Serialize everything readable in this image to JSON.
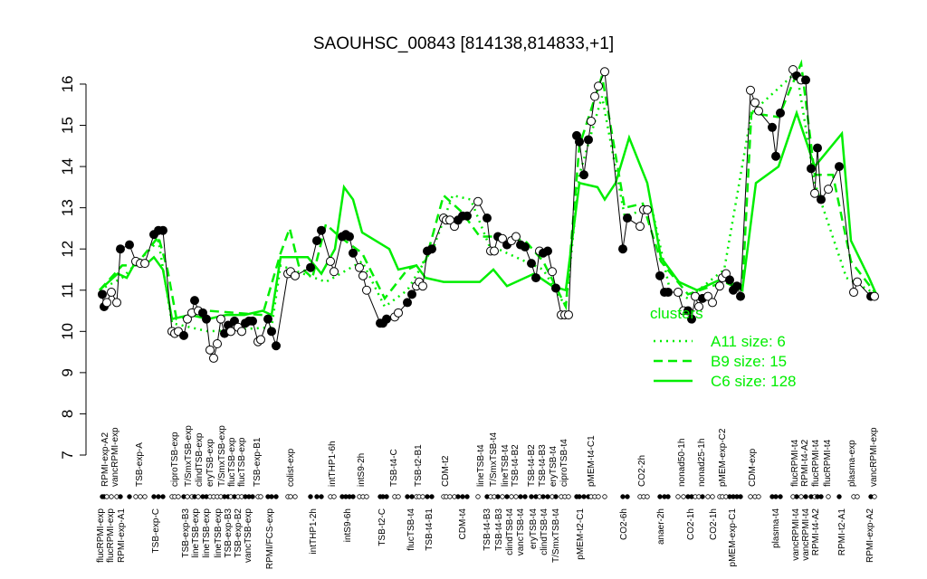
{
  "chart_data": {
    "type": "line",
    "title": "SAOUHSC_00843 [814138,814833,+1]",
    "ylim": [
      7,
      16.5
    ],
    "yticks": [
      7,
      8,
      9,
      10,
      11,
      12,
      13,
      14,
      15,
      16
    ],
    "grid": false,
    "legend_position": "right",
    "legend_title": "clusters",
    "colors": {
      "series": "#00ee00",
      "points": "#000000"
    },
    "points": [
      [
        1.6,
        10.9,
        1
      ],
      [
        2,
        10.6,
        1
      ],
      [
        2.6,
        10.7,
        0
      ],
      [
        3.6,
        10.95,
        0
      ],
      [
        4.8,
        10.7,
        0
      ],
      [
        5.6,
        12.0,
        1
      ],
      [
        7.6,
        12.1,
        1
      ],
      [
        9,
        11.7,
        0
      ],
      [
        10,
        11.65,
        0
      ],
      [
        11,
        11.65,
        0
      ],
      [
        13,
        12.35,
        1
      ],
      [
        14,
        12.45,
        1
      ],
      [
        15,
        12.45,
        1
      ],
      [
        17,
        10.0,
        0
      ],
      [
        17.6,
        9.95,
        0
      ],
      [
        18.4,
        10.0,
        0
      ],
      [
        19.6,
        9.9,
        1
      ],
      [
        20.4,
        10.3,
        0
      ],
      [
        21.4,
        10.45,
        0
      ],
      [
        22,
        10.75,
        1
      ],
      [
        22.8,
        10.5,
        0
      ],
      [
        23.8,
        10.45,
        1
      ],
      [
        24.6,
        10.3,
        1
      ],
      [
        25.4,
        9.55,
        0
      ],
      [
        26.2,
        9.35,
        0
      ],
      [
        27,
        9.7,
        0
      ],
      [
        27.8,
        10.3,
        0
      ],
      [
        28.6,
        9.95,
        1
      ],
      [
        29.4,
        10.15,
        1
      ],
      [
        30,
        10.0,
        0
      ],
      [
        30.8,
        10.25,
        1
      ],
      [
        31.6,
        10.1,
        0
      ],
      [
        32.4,
        10.0,
        0
      ],
      [
        33.2,
        10.2,
        1
      ],
      [
        34,
        10.25,
        1
      ],
      [
        34.8,
        10.25,
        1
      ],
      [
        36,
        9.75,
        0
      ],
      [
        36.6,
        9.8,
        0
      ],
      [
        38.2,
        10.3,
        1
      ],
      [
        39,
        10.0,
        1
      ],
      [
        40,
        9.65,
        1
      ],
      [
        42.6,
        11.4,
        0
      ],
      [
        43.2,
        11.45,
        0
      ],
      [
        44.2,
        11.35,
        0
      ],
      [
        47.6,
        11.55,
        1
      ],
      [
        49,
        12.2,
        1
      ],
      [
        50,
        12.45,
        1
      ],
      [
        52,
        11.7,
        0
      ],
      [
        52.8,
        11.45,
        0
      ],
      [
        54.6,
        12.3,
        1
      ],
      [
        55.4,
        12.35,
        1
      ],
      [
        56.2,
        12.3,
        1
      ],
      [
        57,
        11.9,
        1
      ],
      [
        58.4,
        11.55,
        0
      ],
      [
        59.2,
        11.35,
        0
      ],
      [
        60,
        11.0,
        0
      ],
      [
        63,
        10.2,
        1
      ],
      [
        63.6,
        10.2,
        1
      ],
      [
        64.4,
        10.3,
        1
      ],
      [
        66.2,
        10.35,
        0
      ],
      [
        67,
        10.45,
        0
      ],
      [
        69,
        10.7,
        1
      ],
      [
        70,
        10.9,
        1
      ],
      [
        71,
        11.1,
        0
      ],
      [
        71.6,
        11.2,
        0
      ],
      [
        72.4,
        11.1,
        0
      ],
      [
        73.4,
        11.95,
        1
      ],
      [
        74.4,
        12.0,
        1
      ],
      [
        77,
        12.75,
        0
      ],
      [
        77.6,
        12.7,
        0
      ],
      [
        78.4,
        12.7,
        0
      ],
      [
        79.4,
        12.55,
        0
      ],
      [
        80.2,
        12.7,
        1
      ],
      [
        81.2,
        12.8,
        1
      ],
      [
        82.2,
        12.8,
        1
      ],
      [
        84.6,
        13.15,
        0
      ],
      [
        86.6,
        12.75,
        1
      ],
      [
        87.4,
        11.95,
        0
      ],
      [
        88.2,
        11.95,
        0
      ],
      [
        89,
        12.3,
        1
      ],
      [
        90,
        12.25,
        0
      ],
      [
        91,
        12.1,
        1
      ],
      [
        92,
        12.2,
        0
      ],
      [
        93,
        12.3,
        0
      ],
      [
        94,
        12.1,
        1
      ],
      [
        95,
        12.05,
        1
      ],
      [
        96.4,
        11.65,
        1
      ],
      [
        97.4,
        11.3,
        1
      ],
      [
        98.2,
        11.95,
        0
      ],
      [
        99,
        11.9,
        1
      ],
      [
        100,
        11.95,
        1
      ],
      [
        101,
        11.45,
        0
      ],
      [
        101.8,
        11.05,
        1
      ],
      [
        103,
        10.4,
        0
      ],
      [
        103.8,
        10.4,
        0
      ],
      [
        104.6,
        10.4,
        0
      ],
      [
        106.4,
        14.75,
        1
      ],
      [
        107,
        14.6,
        1
      ],
      [
        108,
        13.8,
        1
      ],
      [
        109,
        14.65,
        1
      ],
      [
        109.6,
        15.1,
        0
      ],
      [
        110.4,
        15.7,
        0
      ],
      [
        111.2,
        15.95,
        0
      ],
      [
        112.6,
        16.3,
        0
      ],
      [
        116.6,
        12.0,
        1
      ],
      [
        117.6,
        12.75,
        1
      ],
      [
        120.4,
        12.55,
        0
      ],
      [
        121.2,
        12.95,
        0
      ],
      [
        122,
        12.95,
        0
      ],
      [
        124.8,
        11.35,
        1
      ],
      [
        125.8,
        10.95,
        1
      ],
      [
        126.6,
        10.95,
        1
      ],
      [
        128.8,
        10.95,
        0
      ],
      [
        130,
        10.5,
        0
      ],
      [
        131,
        10.5,
        1
      ],
      [
        131.8,
        10.3,
        1
      ],
      [
        132.6,
        10.85,
        0
      ],
      [
        133.4,
        10.6,
        0
      ],
      [
        134.2,
        10.8,
        1
      ],
      [
        135.4,
        10.85,
        0
      ],
      [
        136.4,
        10.7,
        0
      ],
      [
        138,
        11.1,
        0
      ],
      [
        138.6,
        11.3,
        0
      ],
      [
        139.4,
        11.4,
        0
      ],
      [
        140.2,
        11.25,
        1
      ],
      [
        141,
        11.0,
        1
      ],
      [
        141.8,
        11.1,
        1
      ],
      [
        142.6,
        10.85,
        1
      ],
      [
        144.8,
        15.85,
        0
      ],
      [
        145.8,
        15.55,
        0
      ],
      [
        146.6,
        15.35,
        0
      ],
      [
        149.6,
        14.95,
        1
      ],
      [
        150.4,
        14.25,
        1
      ],
      [
        151.4,
        15.3,
        1
      ],
      [
        154.2,
        16.35,
        0
      ],
      [
        155,
        16.2,
        1
      ],
      [
        156,
        16.1,
        0
      ],
      [
        157,
        16.1,
        1
      ],
      [
        158.2,
        13.95,
        1
      ],
      [
        159,
        13.35,
        0
      ],
      [
        159.6,
        14.45,
        1
      ],
      [
        160.4,
        13.2,
        1
      ],
      [
        162,
        13.45,
        0
      ],
      [
        164.4,
        14.0,
        1
      ],
      [
        167.6,
        10.95,
        0
      ],
      [
        168.4,
        11.2,
        0
      ],
      [
        171.4,
        10.85,
        1
      ],
      [
        172.2,
        10.85,
        0
      ]
    ],
    "series": [
      {
        "name": "A11 size: 6",
        "style": "dotted",
        "xy": [
          [
            1,
            11.0
          ],
          [
            6,
            11.3
          ],
          [
            14,
            12.2
          ],
          [
            17,
            10.2
          ],
          [
            25,
            10.0
          ],
          [
            39,
            10.1
          ],
          [
            41,
            11.6
          ],
          [
            51,
            11.2
          ],
          [
            59,
            11.7
          ],
          [
            64,
            10.6
          ],
          [
            69,
            11.0
          ],
          [
            75,
            12.1
          ],
          [
            79,
            13.3
          ],
          [
            83,
            13.2
          ],
          [
            87,
            12.1
          ],
          [
            99,
            11.5
          ],
          [
            104,
            10.6
          ],
          [
            107,
            13.8
          ],
          [
            112,
            15.7
          ],
          [
            117,
            12.8
          ],
          [
            123,
            13.0
          ],
          [
            127,
            11.0
          ],
          [
            131,
            10.8
          ],
          [
            139,
            11.5
          ],
          [
            145,
            15.3
          ],
          [
            155,
            16.3
          ],
          [
            159,
            13.6
          ],
          [
            166,
            11.3
          ],
          [
            172.6,
            10.9
          ]
        ]
      },
      {
        "name": "B9 size: 15",
        "style": "dashed",
        "xy": [
          [
            1,
            11.0
          ],
          [
            6,
            11.6
          ],
          [
            9,
            11.6
          ],
          [
            14,
            12.3
          ],
          [
            16,
            11.5
          ],
          [
            18,
            10.3
          ],
          [
            25,
            10.5
          ],
          [
            37,
            10.4
          ],
          [
            41,
            11.9
          ],
          [
            43,
            12.5
          ],
          [
            45,
            11.6
          ],
          [
            48,
            11.3
          ],
          [
            51,
            12.6
          ],
          [
            54,
            12.3
          ],
          [
            59,
            11.9
          ],
          [
            64,
            10.8
          ],
          [
            69,
            11.5
          ],
          [
            73,
            11.7
          ],
          [
            77,
            13.3
          ],
          [
            81,
            12.9
          ],
          [
            85,
            12.3
          ],
          [
            89,
            12.3
          ],
          [
            95,
            12.2
          ],
          [
            99,
            11.7
          ],
          [
            104,
            10.6
          ],
          [
            107,
            14.5
          ],
          [
            112,
            16.2
          ],
          [
            117,
            13.0
          ],
          [
            121,
            13.1
          ],
          [
            125,
            11.7
          ],
          [
            131,
            10.9
          ],
          [
            139,
            11.2
          ],
          [
            143,
            11.0
          ],
          [
            145,
            15.3
          ],
          [
            151,
            15.2
          ],
          [
            156,
            16.5
          ],
          [
            159,
            13.8
          ],
          [
            163,
            13.8
          ],
          [
            167,
            11.7
          ],
          [
            172.6,
            10.9
          ]
        ]
      },
      {
        "name": "C6 size: 128",
        "style": "solid",
        "xy": [
          [
            1,
            11.0
          ],
          [
            5,
            11.4
          ],
          [
            7,
            11.3
          ],
          [
            9,
            11.7
          ],
          [
            11,
            11.6
          ],
          [
            13,
            11.8
          ],
          [
            15,
            11.5
          ],
          [
            17,
            10.3
          ],
          [
            21,
            10.4
          ],
          [
            25,
            10.3
          ],
          [
            29,
            10.4
          ],
          [
            33,
            10.4
          ],
          [
            37,
            10.5
          ],
          [
            39,
            10.4
          ],
          [
            41,
            11.8
          ],
          [
            47,
            11.8
          ],
          [
            50,
            11.4
          ],
          [
            53,
            12.0
          ],
          [
            55,
            13.5
          ],
          [
            57,
            13.2
          ],
          [
            59,
            12.4
          ],
          [
            65,
            12.0
          ],
          [
            67,
            11.5
          ],
          [
            71,
            11.6
          ],
          [
            73,
            11.3
          ],
          [
            77,
            11.2
          ],
          [
            85,
            11.2
          ],
          [
            88,
            11.5
          ],
          [
            91,
            11.1
          ],
          [
            97,
            11.4
          ],
          [
            101,
            11.1
          ],
          [
            104,
            11.0
          ],
          [
            107,
            13.6
          ],
          [
            111,
            13.5
          ],
          [
            112.6,
            13.2
          ],
          [
            115,
            13.6
          ],
          [
            118,
            14.7
          ],
          [
            122,
            13.6
          ],
          [
            125,
            11.8
          ],
          [
            129,
            11.2
          ],
          [
            133,
            11.0
          ],
          [
            139,
            11.3
          ],
          [
            143,
            11.0
          ],
          [
            146,
            13.6
          ],
          [
            151,
            14.0
          ],
          [
            155,
            15.3
          ],
          [
            159,
            14.0
          ],
          [
            162,
            14.4
          ],
          [
            165,
            14.8
          ],
          [
            167,
            12.2
          ],
          [
            171,
            11.3
          ],
          [
            172.6,
            10.9
          ]
        ]
      }
    ],
    "top_labels": [
      [
        2,
        "RPMI-exp-A2"
      ],
      [
        3.2,
        "vancRPMI-exp"
      ],
      [
        9.6,
        "TSB-exp-A"
      ],
      [
        17.4,
        "ciproTSB-exp"
      ],
      [
        20.4,
        "T/SmxTSB-exp"
      ],
      [
        22.8,
        "clindTSB-exp"
      ],
      [
        25.2,
        "eryTSB-exp"
      ],
      [
        27.8,
        "T/SmxTSB-exp"
      ],
      [
        29.4,
        "flucTSB-exp"
      ],
      [
        31.6,
        "flucTSB-exp"
      ],
      [
        35.6,
        "TSB-exp-B1"
      ],
      [
        43,
        "colist-exp"
      ],
      [
        52.2,
        "intTHP1-6h"
      ],
      [
        58.6,
        "intS9-2h"
      ],
      [
        65.8,
        "TSB-t4-C"
      ],
      [
        71.2,
        "TSB-t2-B1"
      ],
      [
        77.2,
        "CDM-t2"
      ],
      [
        85,
        "lineTSB-t4"
      ],
      [
        87.8,
        "T/SmxTSB-t4"
      ],
      [
        90.4,
        "lineTSB-t4"
      ],
      [
        92.4,
        "TSB-t4-B2"
      ],
      [
        96.2,
        "TSB-t4-B2"
      ],
      [
        98.6,
        "TSB-t4-B3"
      ],
      [
        101,
        "eryTSB-t4"
      ],
      [
        103.4,
        "ciproTSB-t4"
      ],
      [
        109.4,
        "pMEM-t4-C1"
      ],
      [
        120.6,
        "CO2-2h"
      ],
      [
        129.4,
        "nonad50-1h"
      ],
      [
        133.8,
        "nonad25-1h"
      ],
      [
        138.4,
        "pMEM-exp-C2"
      ],
      [
        145,
        "CDM-exp"
      ],
      [
        154.4,
        "flucRPMI-t4"
      ],
      [
        155.8,
        "RPMI-t4-A2"
      ],
      [
        159,
        "flucRPMI-t4"
      ],
      [
        161.6,
        "flucRPMI-t4"
      ],
      [
        167,
        "plasma-exp"
      ],
      [
        171.8,
        "vancRPMI-exp"
      ]
    ],
    "bottom_labels": [
      [
        1,
        "flucRPMI-exp"
      ],
      [
        3,
        "flucRPMI-exp"
      ],
      [
        5.6,
        "RPMI-exp-A1"
      ],
      [
        13.2,
        "TSB-exp-C"
      ],
      [
        19.8,
        "TSB-exp-B3"
      ],
      [
        21.6,
        "lineTSB-exp"
      ],
      [
        24.4,
        "lineTSB-exp"
      ],
      [
        27,
        "lineTSB-exp"
      ],
      [
        28,
        "TSB-exp-B3"
      ],
      [
        30.6,
        "TSB-exp-B2"
      ],
      [
        33,
        "vancTSB-exp"
      ],
      [
        38.4,
        "RPMI/FCS-exp"
      ],
      [
        48,
        "intTHP1-2h"
      ],
      [
        55.6,
        "intS9-6h"
      ],
      [
        63.2,
        "TSB-t2-C"
      ],
      [
        69.6,
        "flucTSB-t4"
      ],
      [
        73.6,
        "TSB-t4-B1"
      ],
      [
        81,
        "CDM-t4"
      ],
      [
        86.4,
        "TSB-t4-B3"
      ],
      [
        89,
        "TSB-t4-B3"
      ],
      [
        91.4,
        "clindTSB-t4"
      ],
      [
        93.8,
        "vancTSB-t4"
      ],
      [
        96.6,
        "eryTSB-t4"
      ],
      [
        99,
        "clindTSB-t4"
      ],
      [
        101.6,
        "T/SmxTSB-t4"
      ],
      [
        107,
        "pMEM-t2-C1"
      ],
      [
        116.6,
        "CO2-6h"
      ],
      [
        124.8,
        "anaer-2h"
      ],
      [
        131.4,
        "CO2-1h"
      ],
      [
        136.4,
        "CO2-1h"
      ],
      [
        140.6,
        "pMEM-exp-C1"
      ],
      [
        150.2,
        "plasma-t4"
      ],
      [
        154.6,
        "vancRPMI-t4"
      ],
      [
        155.8,
        "vancRPMI-t4"
      ],
      [
        159,
        "RPMI-t4-A2"
      ],
      [
        164.8,
        "RPMI-t2-A1"
      ],
      [
        171,
        "RPMI-exp-A2"
      ]
    ]
  }
}
